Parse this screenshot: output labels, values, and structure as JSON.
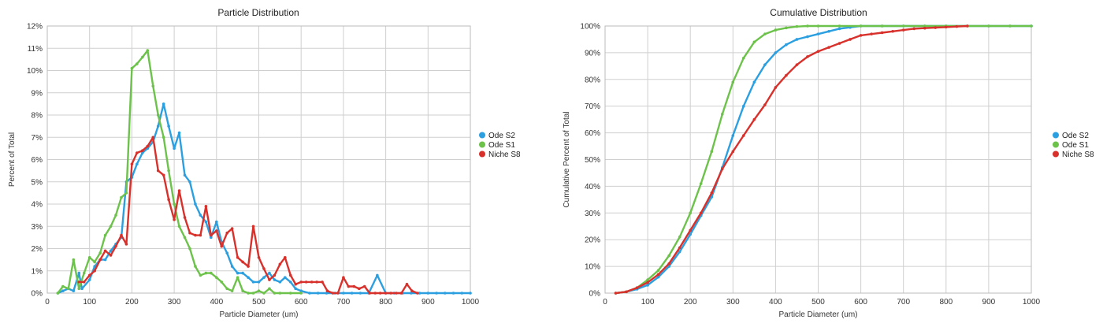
{
  "chart_data": [
    {
      "type": "line",
      "title": "Particle Distribution",
      "xlabel": "Particle Diameter (um)",
      "ylabel": "Percent of Total",
      "xlim": [
        0,
        1000
      ],
      "ylim": [
        0,
        12
      ],
      "xticks": [
        "0",
        "100",
        "200",
        "300",
        "400",
        "500",
        "600",
        "700",
        "800",
        "900",
        "1000"
      ],
      "yticks": [
        "0%",
        "1%",
        "2%",
        "3%",
        "4%",
        "5%",
        "6%",
        "7%",
        "8%",
        "9%",
        "10%",
        "11%",
        "12%"
      ],
      "grid": true,
      "legend_position": "right",
      "series": [
        {
          "name": "Ode S2",
          "color": "#2b9fe0",
          "x": [
            25,
            37,
            50,
            62,
            75,
            82,
            100,
            112,
            125,
            137,
            150,
            162,
            175,
            187,
            200,
            212,
            225,
            237,
            250,
            262,
            275,
            287,
            300,
            312,
            325,
            337,
            350,
            362,
            375,
            387,
            400,
            412,
            425,
            437,
            450,
            462,
            475,
            487,
            500,
            512,
            525,
            537,
            550,
            562,
            575,
            587,
            600,
            620,
            640,
            660,
            680,
            700,
            720,
            740,
            760,
            780,
            800,
            820,
            840,
            860,
            880,
            900,
            920,
            940,
            960,
            980,
            1000
          ],
          "y": [
            0,
            0.1,
            0.2,
            0.1,
            0.9,
            0.2,
            0.6,
            1.2,
            1.5,
            1.5,
            1.9,
            2.2,
            2.5,
            5.0,
            5.2,
            5.8,
            6.3,
            6.5,
            6.8,
            7.5,
            8.5,
            7.5,
            6.5,
            7.2,
            5.3,
            5.0,
            4.0,
            3.5,
            3.2,
            2.5,
            3.2,
            2.3,
            1.8,
            1.2,
            0.9,
            0.9,
            0.7,
            0.5,
            0.5,
            0.7,
            0.9,
            0.6,
            0.5,
            0.7,
            0.5,
            0.2,
            0.1,
            0,
            0,
            0,
            0,
            0,
            0,
            0,
            0,
            0.8,
            0,
            0,
            0,
            0,
            0,
            0,
            0,
            0,
            0,
            0,
            0
          ]
        },
        {
          "name": "Ode S1",
          "color": "#6cc24a",
          "x": [
            25,
            37,
            50,
            62,
            75,
            87,
            100,
            112,
            125,
            137,
            150,
            162,
            175,
            187,
            200,
            212,
            225,
            237,
            250,
            262,
            275,
            287,
            300,
            312,
            325,
            337,
            350,
            362,
            375,
            387,
            400,
            412,
            425,
            437,
            450,
            462,
            475,
            487,
            500,
            512,
            525,
            537,
            550,
            575,
            600
          ],
          "y": [
            0,
            0.3,
            0.2,
            1.5,
            0.2,
            0.9,
            1.6,
            1.4,
            1.8,
            2.6,
            3.0,
            3.5,
            4.3,
            4.5,
            10.1,
            10.3,
            10.6,
            10.9,
            9.3,
            8.0,
            7.0,
            5.5,
            4.0,
            3.0,
            2.5,
            2.0,
            1.2,
            0.8,
            0.9,
            0.9,
            0.7,
            0.5,
            0.2,
            0.1,
            0.7,
            0.1,
            0,
            0,
            0.1,
            0,
            0.2,
            0,
            0,
            0,
            0
          ]
        },
        {
          "name": "Niche S8",
          "color": "#d8302b",
          "x": [
            75,
            87,
            100,
            112,
            125,
            137,
            150,
            162,
            175,
            187,
            200,
            212,
            225,
            237,
            250,
            262,
            275,
            287,
            300,
            312,
            325,
            337,
            350,
            362,
            375,
            387,
            400,
            412,
            425,
            437,
            450,
            462,
            475,
            487,
            500,
            512,
            525,
            537,
            550,
            562,
            575,
            587,
            600,
            612,
            625,
            637,
            650,
            662,
            675,
            687,
            700,
            712,
            725,
            737,
            750,
            762,
            775,
            787,
            800,
            812,
            825,
            837,
            850,
            862,
            875
          ],
          "y": [
            0.5,
            0.5,
            0.8,
            1.0,
            1.5,
            1.9,
            1.7,
            2.1,
            2.6,
            2.2,
            5.8,
            6.3,
            6.4,
            6.6,
            7.0,
            5.5,
            5.3,
            4.2,
            3.3,
            4.6,
            3.4,
            2.7,
            2.6,
            2.6,
            3.9,
            2.6,
            2.8,
            2.1,
            2.7,
            2.9,
            1.6,
            1.4,
            1.2,
            3.0,
            1.6,
            1.1,
            0.6,
            0.8,
            1.3,
            1.6,
            0.8,
            0.4,
            0.5,
            0.5,
            0.5,
            0.5,
            0.5,
            0.1,
            0,
            0,
            0.7,
            0.3,
            0.3,
            0.2,
            0.3,
            0,
            0,
            0,
            0,
            0,
            0,
            0,
            0.4,
            0.1,
            0
          ]
        }
      ]
    },
    {
      "type": "line",
      "title": "Cumulative Distribution",
      "xlabel": "Particle Diameter (um)",
      "ylabel": "Cumulative Percent of Total",
      "xlim": [
        0,
        1000
      ],
      "ylim": [
        0,
        100
      ],
      "xticks": [
        "0",
        "100",
        "200",
        "300",
        "400",
        "500",
        "600",
        "700",
        "800",
        "900",
        "1000"
      ],
      "yticks": [
        "0%",
        "10%",
        "20%",
        "30%",
        "40%",
        "50%",
        "60%",
        "70%",
        "80%",
        "90%",
        "100%"
      ],
      "grid": true,
      "legend_position": "right",
      "series": [
        {
          "name": "Ode S2",
          "color": "#2b9fe0",
          "x": [
            25,
            50,
            75,
            100,
            125,
            150,
            175,
            200,
            225,
            250,
            275,
            300,
            325,
            350,
            375,
            400,
            425,
            450,
            475,
            500,
            525,
            550,
            575,
            600,
            650,
            700,
            750,
            800,
            850,
            900,
            950,
            1000
          ],
          "y": [
            0,
            0.5,
            1.5,
            3,
            6,
            10,
            15.5,
            22,
            29,
            36,
            47,
            59,
            70,
            79,
            85.5,
            90,
            93,
            95,
            96,
            97,
            98,
            99,
            99.5,
            100,
            100,
            100,
            100,
            100,
            100,
            100,
            100,
            100
          ]
        },
        {
          "name": "Ode S1",
          "color": "#6cc24a",
          "x": [
            25,
            50,
            75,
            100,
            125,
            150,
            175,
            200,
            225,
            250,
            275,
            300,
            325,
            350,
            375,
            400,
            425,
            450,
            475,
            500,
            550,
            600,
            650,
            700,
            750,
            800,
            850,
            900,
            950,
            1000
          ],
          "y": [
            0,
            0.5,
            2,
            5,
            8.5,
            14,
            21,
            30,
            41,
            53,
            67,
            79,
            88,
            94,
            97,
            98.5,
            99.3,
            99.8,
            100,
            100,
            100,
            100,
            100,
            100,
            100,
            100,
            100,
            100,
            100,
            100
          ]
        },
        {
          "name": "Niche S8",
          "color": "#d8302b",
          "x": [
            25,
            50,
            75,
            100,
            125,
            150,
            175,
            200,
            225,
            250,
            275,
            300,
            325,
            350,
            375,
            400,
            425,
            450,
            475,
            500,
            525,
            550,
            575,
            600,
            625,
            650,
            675,
            700,
            725,
            750,
            775,
            800,
            825,
            850
          ],
          "y": [
            0,
            0.5,
            2,
            4,
            7,
            11,
            17,
            23.5,
            30,
            37.5,
            46.5,
            53,
            59,
            65,
            70.5,
            77,
            81.5,
            85.5,
            88.5,
            90.5,
            92,
            93.5,
            95,
            96.5,
            97,
            97.5,
            98,
            98.5,
            99,
            99.2,
            99.4,
            99.6,
            99.8,
            100
          ]
        }
      ]
    }
  ]
}
